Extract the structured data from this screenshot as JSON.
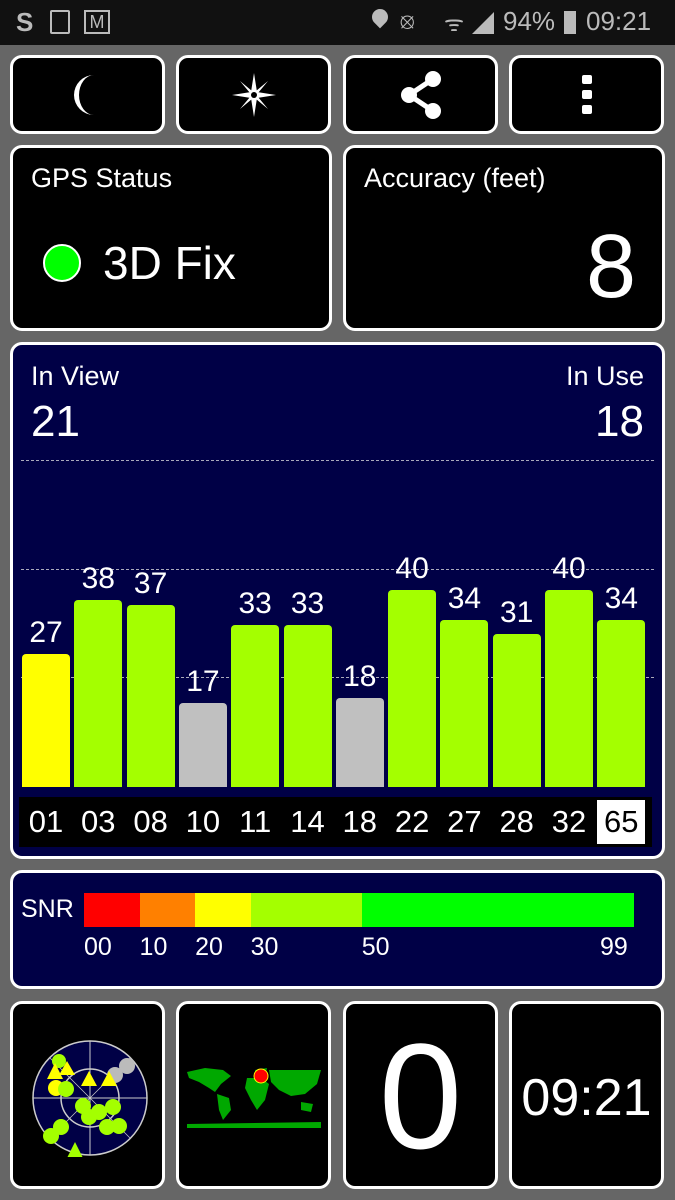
{
  "status_bar": {
    "battery": "94%",
    "time": "09:21",
    "left_icons": [
      "skype-icon",
      "gallery-icon",
      "gmail-icon"
    ],
    "right_icons": [
      "location-icon",
      "vibrate-mute-icon",
      "wifi-icon",
      "signal-icon",
      "battery-icon"
    ]
  },
  "toolbar": {
    "buttons": [
      "night-mode",
      "compass",
      "share",
      "more-options"
    ]
  },
  "gps_status": {
    "label": "GPS Status",
    "value": "3D Fix",
    "indicator_color": "#00ff00"
  },
  "accuracy": {
    "label": "Accuracy (feet)",
    "value": "8"
  },
  "satellites": {
    "in_view_label": "In View",
    "in_view": "21",
    "in_use_label": "In Use",
    "in_use": "18",
    "bars": [
      {
        "prn": "01",
        "snr": 27,
        "color": "#ffff00"
      },
      {
        "prn": "03",
        "snr": 38,
        "color": "#a4ff00"
      },
      {
        "prn": "08",
        "snr": 37,
        "color": "#a4ff00"
      },
      {
        "prn": "10",
        "snr": 17,
        "color": "#c0c0c0"
      },
      {
        "prn": "11",
        "snr": 33,
        "color": "#a4ff00"
      },
      {
        "prn": "14",
        "snr": 33,
        "color": "#a4ff00"
      },
      {
        "prn": "18",
        "snr": 18,
        "color": "#c0c0c0"
      },
      {
        "prn": "22",
        "snr": 40,
        "color": "#a4ff00"
      },
      {
        "prn": "27",
        "snr": 34,
        "color": "#a4ff00"
      },
      {
        "prn": "28",
        "snr": 31,
        "color": "#a4ff00"
      },
      {
        "prn": "32",
        "snr": 40,
        "color": "#a4ff00"
      },
      {
        "prn": "65",
        "snr": 34,
        "color": "#a4ff00",
        "highlighted": true
      }
    ]
  },
  "snr_legend": {
    "label": "SNR",
    "segments": [
      {
        "from": 0,
        "to": 10,
        "color": "#ff0000"
      },
      {
        "from": 10,
        "to": 20,
        "color": "#ff8000"
      },
      {
        "from": 20,
        "to": 30,
        "color": "#ffff00"
      },
      {
        "from": 30,
        "to": 50,
        "color": "#a4ff00"
      },
      {
        "from": 50,
        "to": 99,
        "color": "#00ff00"
      }
    ],
    "ticks": [
      "00",
      "10",
      "20",
      "30",
      "50",
      "99"
    ]
  },
  "bottom": {
    "sats_count": "0",
    "clock": "09:21"
  }
}
